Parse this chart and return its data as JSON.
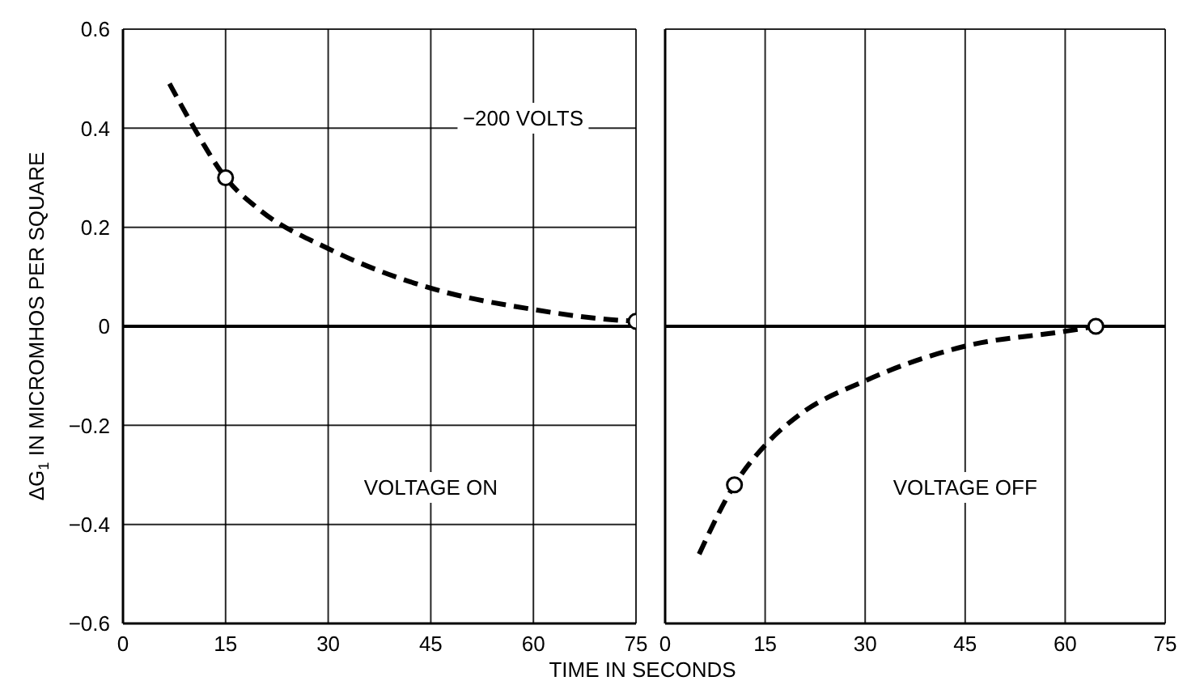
{
  "chart_data": [
    {
      "type": "line",
      "xlabel": "TIME IN SECONDS",
      "ylabel": "ΔG$_{1}$ IN MICROMHOS PER SQUARE",
      "annotations": [
        "−200 VOLTS",
        "VOLTAGE ON"
      ],
      "xlim": [
        0,
        75
      ],
      "xticks": [
        0,
        15,
        30,
        45,
        60,
        75
      ],
      "ylim": [
        -0.6,
        0.6
      ],
      "yticks": [
        -0.6,
        -0.4,
        -0.2,
        0,
        0.2,
        0.4,
        0.6
      ],
      "grid": true,
      "ref_lines": [
        {
          "axis": "y",
          "value": 0,
          "color": "#000000"
        }
      ],
      "series": [
        {
          "color": "#000000",
          "line_style": "dashed",
          "marker": "none",
          "x": [
            6.8,
            10,
            15,
            20,
            30,
            45,
            60,
            70,
            75
          ],
          "values": [
            0.49,
            0.41,
            0.3,
            0.235,
            0.157,
            0.077,
            0.034,
            0.015,
            0.01
          ]
        },
        {
          "type": "scatter",
          "color": "#000000",
          "marker": "circle",
          "x": [
            15,
            75
          ],
          "values": [
            0.3,
            0.01
          ]
        }
      ]
    },
    {
      "type": "line",
      "annotations": [
        "VOLTAGE OFF"
      ],
      "tick_labels": "x",
      "xlim": [
        0,
        75
      ],
      "xticks": [
        0,
        15,
        30,
        45,
        60,
        75
      ],
      "ylim": [
        -0.6,
        0.6
      ],
      "yticks": [
        -0.6,
        -0.4,
        -0.2,
        0,
        0.2,
        0.4,
        0.6
      ],
      "grid": true,
      "ref_lines": [
        {
          "axis": "y",
          "value": 0,
          "color": "#000000"
        }
      ],
      "series": [
        {
          "color": "#000000",
          "line_style": "dashed",
          "marker": "none",
          "x": [
            5.1,
            10.4,
            15,
            20,
            30,
            45,
            60,
            64.6
          ],
          "values": [
            -0.46,
            -0.32,
            -0.24,
            -0.18,
            -0.11,
            -0.04,
            -0.01,
            0
          ]
        },
        {
          "type": "scatter",
          "color": "#000000",
          "marker": "circle",
          "x": [
            10.4,
            64.6
          ],
          "values": [
            -0.32,
            0
          ]
        }
      ]
    }
  ]
}
